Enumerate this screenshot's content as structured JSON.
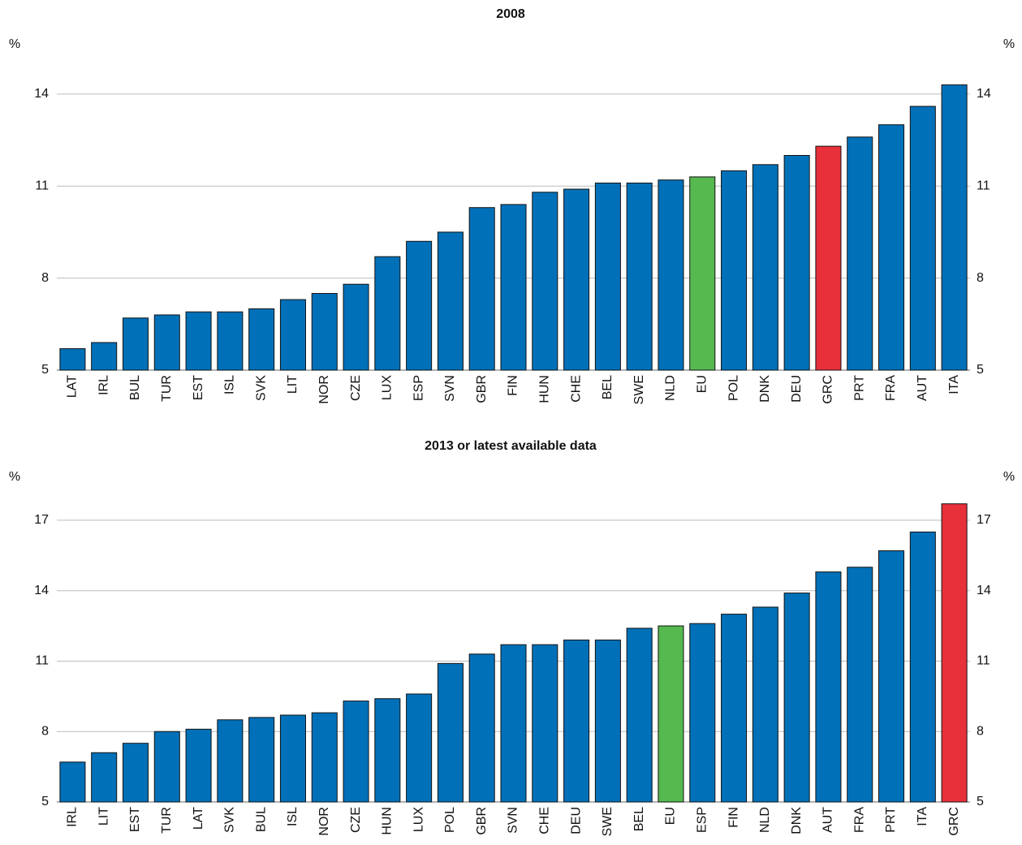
{
  "chart_data": [
    {
      "type": "bar",
      "title": "2008",
      "y_label": "%",
      "categories": [
        "LAT",
        "IRL",
        "BUL",
        "TUR",
        "EST",
        "ISL",
        "SVK",
        "LIT",
        "NOR",
        "CZE",
        "LUX",
        "ESP",
        "SVN",
        "GBR",
        "FIN",
        "HUN",
        "CHE",
        "BEL",
        "SWE",
        "NLD",
        "EU",
        "POL",
        "DNK",
        "DEU",
        "GRC",
        "PRT",
        "FRA",
        "AUT",
        "ITA"
      ],
      "values": [
        5.7,
        5.9,
        6.7,
        6.8,
        6.9,
        6.9,
        7.0,
        7.3,
        7.5,
        7.8,
        8.7,
        9.2,
        9.5,
        10.3,
        10.4,
        10.8,
        10.9,
        11.1,
        11.1,
        11.2,
        11.3,
        11.5,
        11.7,
        12.0,
        12.3,
        12.6,
        13.0,
        13.6,
        14.3
      ],
      "colors": [
        "#0070b8",
        "#0070b8",
        "#0070b8",
        "#0070b8",
        "#0070b8",
        "#0070b8",
        "#0070b8",
        "#0070b8",
        "#0070b8",
        "#0070b8",
        "#0070b8",
        "#0070b8",
        "#0070b8",
        "#0070b8",
        "#0070b8",
        "#0070b8",
        "#0070b8",
        "#0070b8",
        "#0070b8",
        "#0070b8",
        "#55b94f",
        "#0070b8",
        "#0070b8",
        "#0070b8",
        "#e8303a",
        "#0070b8",
        "#0070b8",
        "#0070b8",
        "#0070b8"
      ],
      "ylim": [
        5,
        14.5
      ],
      "yticks": [
        5,
        8,
        11,
        14
      ],
      "grid": true
    },
    {
      "type": "bar",
      "title": "2013 or latest available data",
      "y_label": "%",
      "categories": [
        "IRL",
        "LIT",
        "EST",
        "TUR",
        "LAT",
        "SVK",
        "BUL",
        "ISL",
        "NOR",
        "CZE",
        "HUN",
        "LUX",
        "POL",
        "GBR",
        "SVN",
        "CHE",
        "DEU",
        "SWE",
        "BEL",
        "EU",
        "ESP",
        "FIN",
        "NLD",
        "DNK",
        "AUT",
        "FRA",
        "PRT",
        "ITA",
        "GRC"
      ],
      "values": [
        6.7,
        7.1,
        7.5,
        8.0,
        8.1,
        8.5,
        8.6,
        8.7,
        8.8,
        9.3,
        9.4,
        9.6,
        10.9,
        11.3,
        11.7,
        11.7,
        11.9,
        11.9,
        12.4,
        12.5,
        12.6,
        13.0,
        13.3,
        13.9,
        14.8,
        15.0,
        15.7,
        16.5,
        17.7
      ],
      "colors": [
        "#0070b8",
        "#0070b8",
        "#0070b8",
        "#0070b8",
        "#0070b8",
        "#0070b8",
        "#0070b8",
        "#0070b8",
        "#0070b8",
        "#0070b8",
        "#0070b8",
        "#0070b8",
        "#0070b8",
        "#0070b8",
        "#0070b8",
        "#0070b8",
        "#0070b8",
        "#0070b8",
        "#0070b8",
        "#55b94f",
        "#0070b8",
        "#0070b8",
        "#0070b8",
        "#0070b8",
        "#0070b8",
        "#0070b8",
        "#0070b8",
        "#0070b8",
        "#e8303a"
      ],
      "ylim": [
        5,
        18
      ],
      "yticks": [
        5,
        8,
        11,
        14,
        17
      ],
      "grid": true
    }
  ]
}
